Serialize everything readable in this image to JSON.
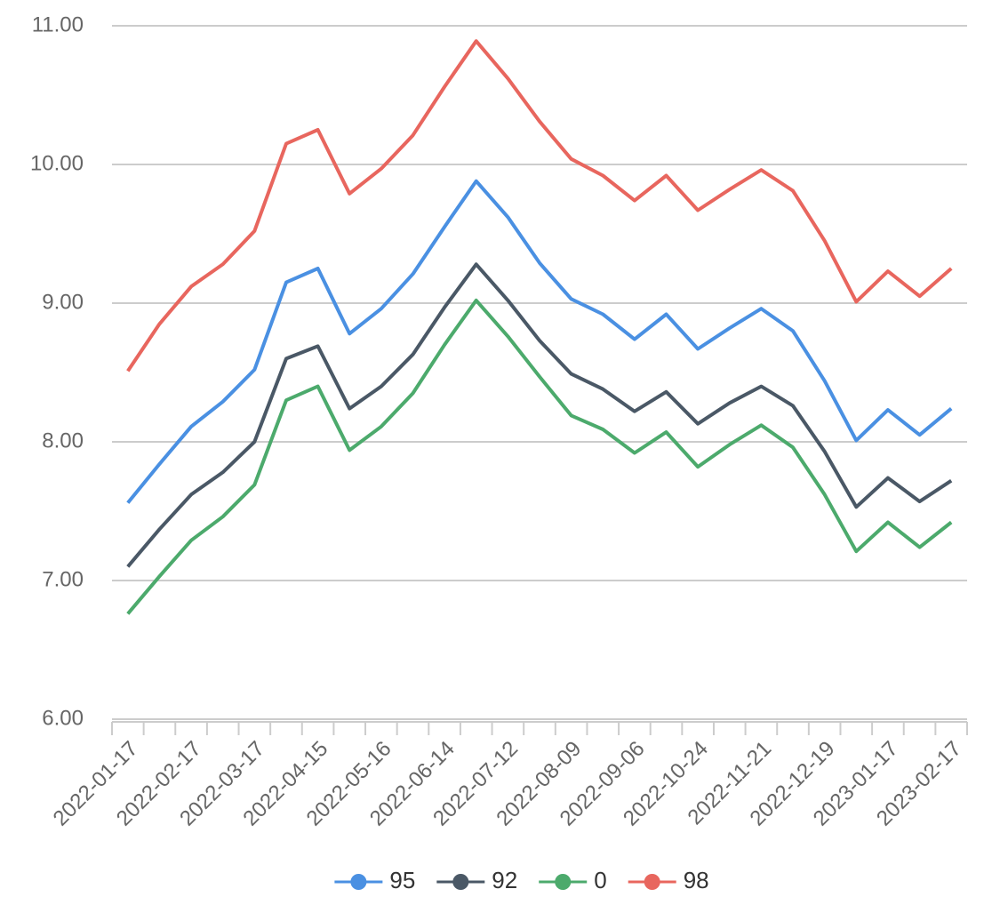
{
  "chart_data": {
    "type": "line",
    "categories": [
      "2022-01-17",
      null,
      "2022-02-17",
      null,
      "2022-03-17",
      null,
      "2022-04-15",
      null,
      "2022-05-16",
      null,
      "2022-06-14",
      null,
      "2022-07-12",
      null,
      "2022-08-09",
      null,
      "2022-09-06",
      null,
      "2022-10-24",
      null,
      "2022-11-21",
      null,
      "2022-12-19",
      null,
      "2023-01-17",
      null,
      "2023-02-17"
    ],
    "series": [
      {
        "name": "95",
        "color": "#4a90e2",
        "values": [
          7.56,
          7.84,
          8.11,
          8.29,
          8.52,
          9.15,
          9.25,
          8.78,
          8.96,
          9.21,
          9.55,
          9.88,
          9.62,
          9.29,
          9.03,
          8.92,
          8.74,
          8.92,
          8.67,
          8.82,
          8.96,
          8.8,
          8.44,
          8.01,
          8.23,
          8.05,
          8.24
        ]
      },
      {
        "name": "92",
        "color": "#4a5866",
        "values": [
          7.1,
          7.37,
          7.62,
          7.78,
          8.0,
          8.6,
          8.69,
          8.24,
          8.4,
          8.63,
          8.97,
          9.28,
          9.02,
          8.73,
          8.49,
          8.38,
          8.22,
          8.36,
          8.13,
          8.28,
          8.4,
          8.26,
          7.93,
          7.53,
          7.74,
          7.57,
          7.72
        ]
      },
      {
        "name": "0",
        "color": "#4caa6c",
        "values": [
          6.76,
          7.03,
          7.29,
          7.46,
          7.69,
          8.3,
          8.4,
          7.94,
          8.11,
          8.35,
          8.7,
          9.02,
          8.76,
          8.47,
          8.19,
          8.09,
          7.92,
          8.07,
          7.82,
          7.98,
          8.12,
          7.96,
          7.62,
          7.21,
          7.42,
          7.24,
          7.42
        ]
      },
      {
        "name": "98",
        "color": "#e8665e",
        "values": [
          8.51,
          8.85,
          9.12,
          9.28,
          9.52,
          10.15,
          10.25,
          9.79,
          9.97,
          10.21,
          10.56,
          10.89,
          10.62,
          10.31,
          10.04,
          9.92,
          9.74,
          9.92,
          9.67,
          9.82,
          9.96,
          9.81,
          9.45,
          9.01,
          9.23,
          9.05,
          9.25
        ]
      }
    ],
    "ylim": [
      6,
      11
    ],
    "yticks": [
      {
        "value": 6,
        "label": "6.00"
      },
      {
        "value": 7,
        "label": "7.00"
      },
      {
        "value": 8,
        "label": "8.00"
      },
      {
        "value": 9,
        "label": "9.00"
      },
      {
        "value": 10,
        "label": "10.00"
      },
      {
        "value": 11,
        "label": "11.00"
      }
    ],
    "grid": true,
    "legend": "bottom"
  }
}
